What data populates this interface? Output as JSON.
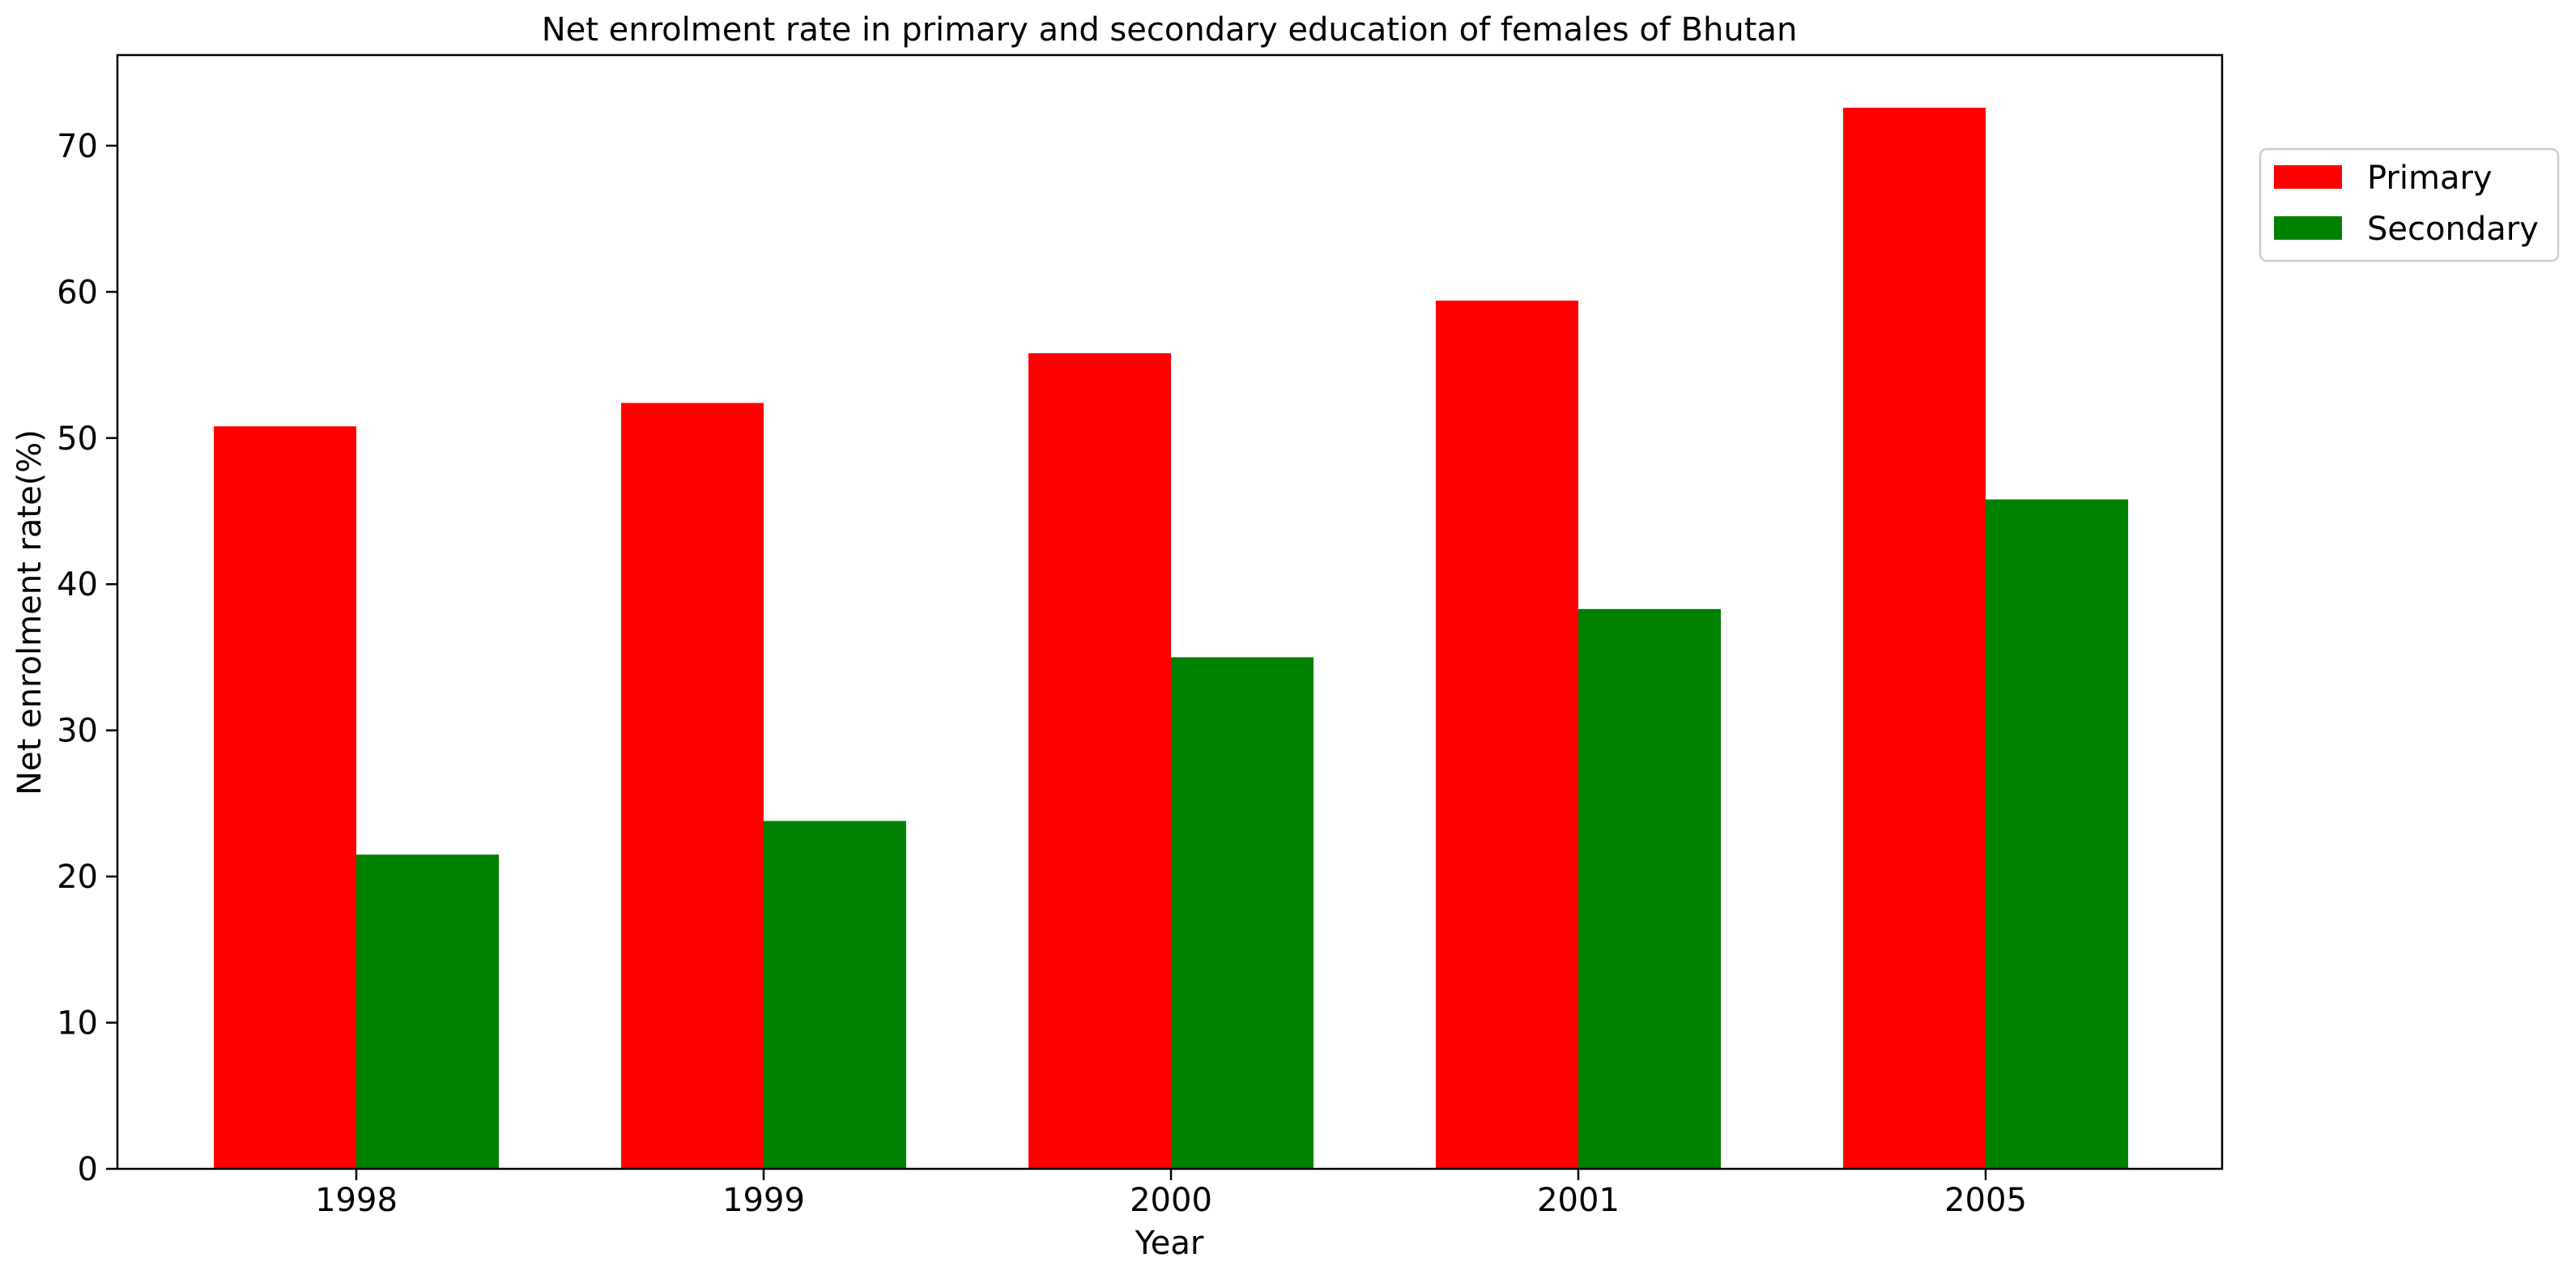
{
  "chart_data": {
    "type": "bar",
    "title": "Net enrolment rate in primary and secondary education of females of Bhutan",
    "xlabel": "Year",
    "ylabel": "Net enrolment rate(%)",
    "categories": [
      "1998",
      "1999",
      "2000",
      "2001",
      "2005"
    ],
    "series": [
      {
        "name": "Primary",
        "color": "#ff0000",
        "values": [
          50.8,
          52.4,
          55.8,
          59.4,
          72.6
        ]
      },
      {
        "name": "Secondary",
        "color": "#008000",
        "values": [
          21.5,
          23.8,
          35.0,
          38.3,
          45.8
        ]
      }
    ],
    "ylim": [
      0,
      76.2
    ],
    "yticks": [
      0,
      10,
      20,
      30,
      40,
      50,
      60,
      70
    ],
    "grid": false,
    "legend": "outside-top-right"
  }
}
